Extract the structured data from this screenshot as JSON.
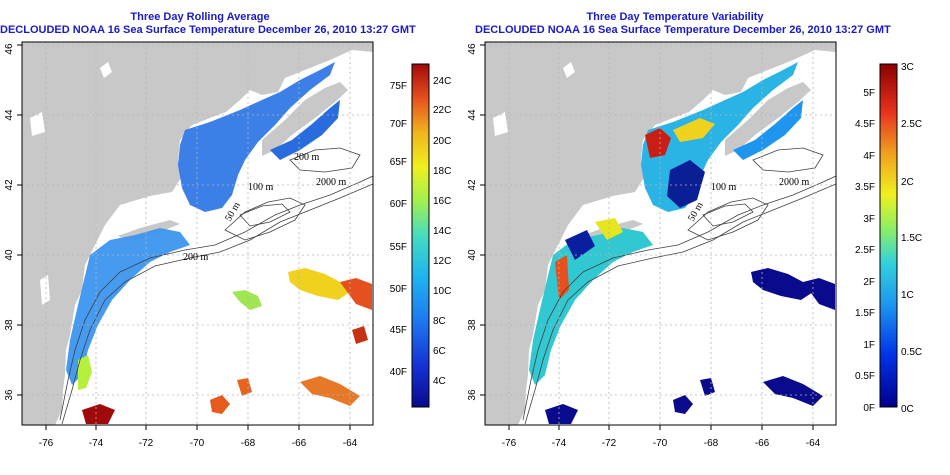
{
  "panels": [
    {
      "title_line1": "Three Day Rolling Average",
      "title_line2": "DECLOUDED NOAA 16 Sea Surface Temperature December 26, 2010 13:27 GMT",
      "x_ticks": [
        "-76",
        "-74",
        "-72",
        "-70",
        "-68",
        "-66",
        "-64"
      ],
      "y_ticks": [
        "36",
        "38",
        "40",
        "42",
        "44",
        "46"
      ],
      "colorbar_right_labels": [
        "24C",
        "22C",
        "20C",
        "18C",
        "16C",
        "14C",
        "12C",
        "10C",
        "8C",
        "6C",
        "4C"
      ],
      "colorbar_left_labels": [
        "75F",
        "70F",
        "65F",
        "60F",
        "55F",
        "50F",
        "45F",
        "40F"
      ],
      "contour_labels": [
        "200 m",
        "100 m",
        "2000 m",
        "200 m",
        "50 m"
      ]
    },
    {
      "title_line1": "Three Day Temperature Variability",
      "title_line2": "DECLOUDED NOAA 16 Sea Surface Temperature December 26, 2010 13:27 GMT",
      "x_ticks": [
        "-76",
        "-74",
        "-72",
        "-70",
        "-68",
        "-66",
        "-64"
      ],
      "y_ticks": [
        "36",
        "38",
        "40",
        "42",
        "44",
        "46"
      ],
      "colorbar_right_labels": [
        "3C",
        "2.5C",
        "2C",
        "1.5C",
        "1C",
        "0.5C",
        "0C"
      ],
      "colorbar_left_labels": [
        "5F",
        "4.5F",
        "4F",
        "3.5F",
        "3F",
        "2.5F",
        "2F",
        "1.5F",
        "1F",
        "0.5F",
        "0F"
      ],
      "contour_labels": [
        "100 m",
        "2000 m",
        "50 m"
      ]
    }
  ],
  "colors": {
    "land": "#c8c8c8",
    "title": "#1a1ac8",
    "grid": "#b4b4b4"
  }
}
